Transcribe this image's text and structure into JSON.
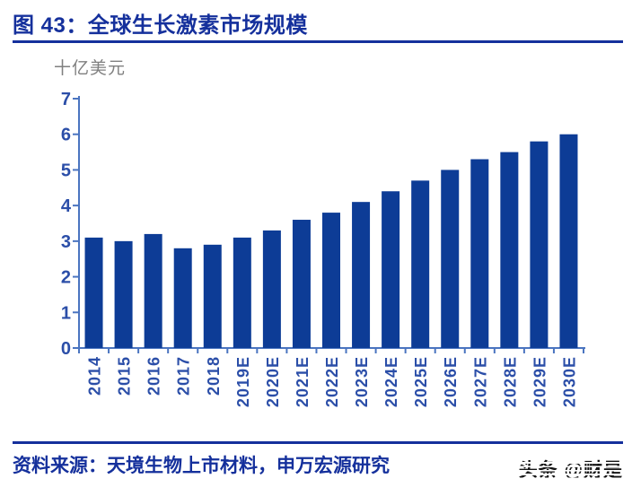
{
  "figure": {
    "title": "图 43：全球生长激素市场规模",
    "unit_label": "十亿美元",
    "source": "资料来源：天境生物上市材料，申万宏源研究",
    "watermark": "头条 @财是"
  },
  "colors": {
    "bar": "#0D3C96",
    "title_text": "#15309C",
    "axis_label": "#2B4EA8",
    "axis_line": "#4A74C0",
    "unit_label": "#7F7F7F",
    "rule": "#15309C"
  },
  "chart_data": {
    "type": "bar",
    "title": "全球生长激素市场规模",
    "xlabel": "",
    "ylabel": "十亿美元",
    "categories": [
      "2014",
      "2015",
      "2016",
      "2017",
      "2018",
      "2019E",
      "2020E",
      "2021E",
      "2022E",
      "2023E",
      "2024E",
      "2025E",
      "2026E",
      "2027E",
      "2028E",
      "2029E",
      "2030E"
    ],
    "values": [
      3.1,
      3.0,
      3.2,
      2.8,
      2.9,
      3.1,
      3.3,
      3.6,
      3.8,
      4.1,
      4.4,
      4.7,
      5.0,
      5.3,
      5.5,
      5.8,
      6.0
    ],
    "ylim": [
      0,
      7
    ],
    "ytick_step": 1,
    "grid": false,
    "legend": "none",
    "bar_orientation": "vertical",
    "x_tick_label_rotation": -90
  }
}
